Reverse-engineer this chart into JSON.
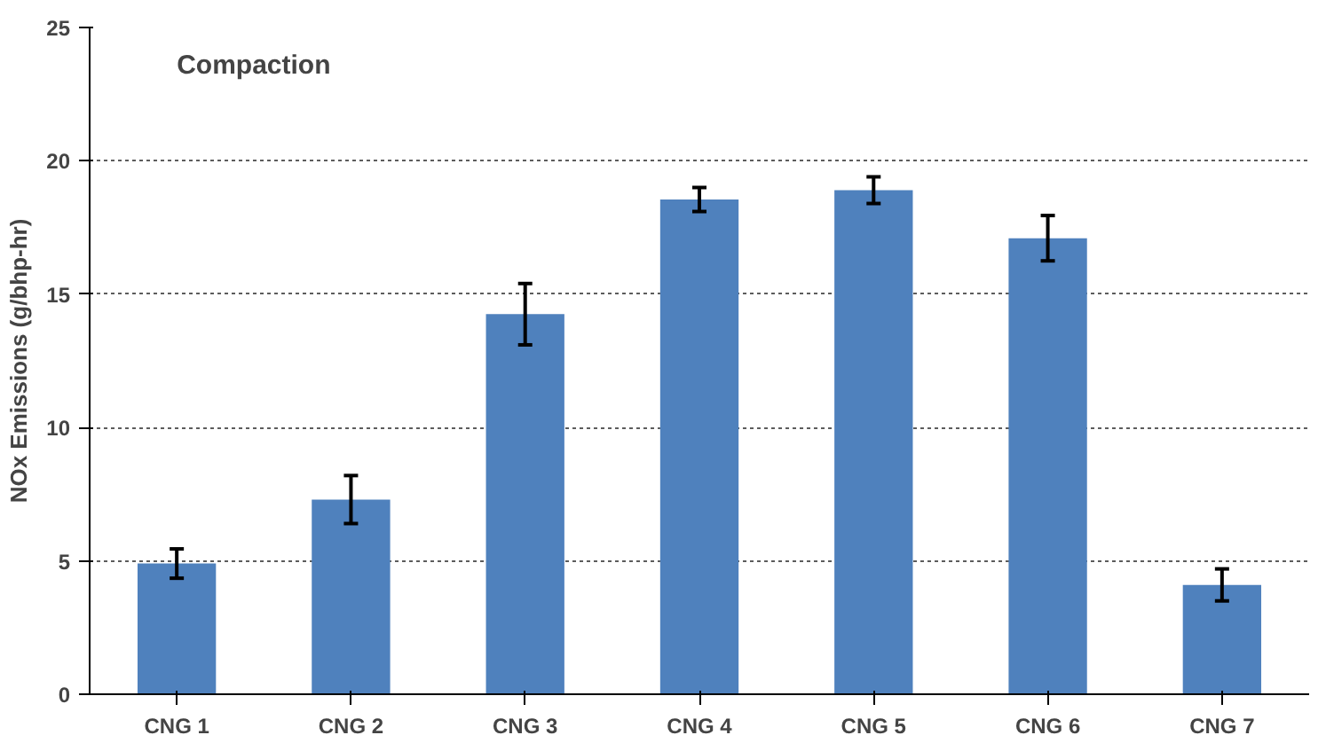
{
  "chart_data": {
    "type": "bar",
    "ylabel": "NOx Emissions (g/bhp-hr)",
    "annotations": [
      "Compaction"
    ],
    "categories": [
      "CNG 1",
      "CNG 2",
      "CNG 3",
      "CNG 4",
      "CNG 5",
      "CNG 6",
      "CNG 7"
    ],
    "values": [
      4.9,
      7.3,
      14.25,
      18.55,
      18.9,
      17.1,
      4.1
    ],
    "errors": [
      0.55,
      0.9,
      1.15,
      0.45,
      0.5,
      0.85,
      0.6
    ],
    "color": "#4f81bd",
    "ylim": [
      0,
      25
    ],
    "yticks": [
      0,
      5,
      10,
      15,
      20,
      25
    ],
    "grid": "y"
  }
}
